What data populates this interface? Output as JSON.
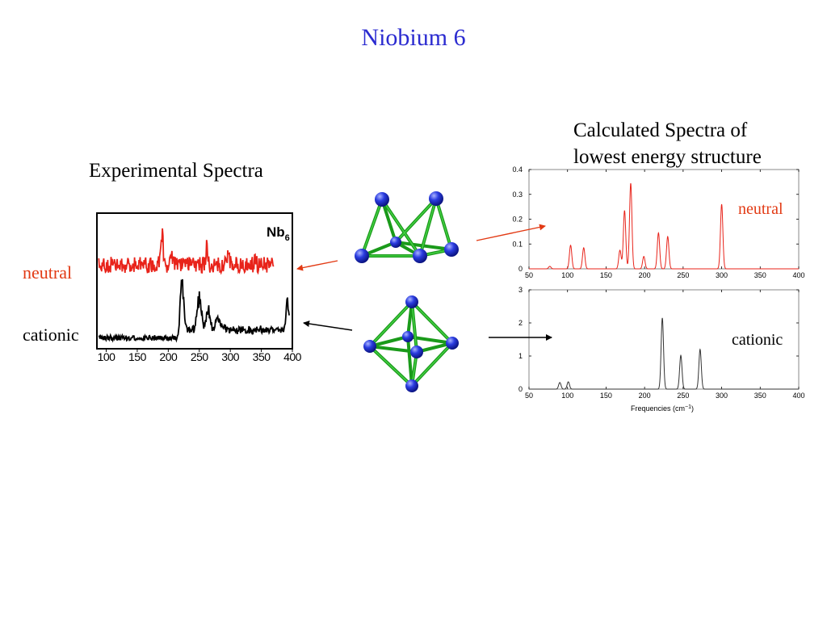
{
  "title": "Niobium 6",
  "experimental": {
    "heading": "Experimental Spectra",
    "inset_label": "Nb",
    "inset_sub": "6",
    "label_neutral": "neutral",
    "label_cationic": "cationic"
  },
  "calculated": {
    "heading_line1": "Calculated Spectra of",
    "heading_line2": "lowest energy structure",
    "label_neutral": "neutral",
    "label_cationic": "cationic"
  },
  "colors": {
    "title": "#2b2bd0",
    "neutral": "#e8231a",
    "cationic": "#000000",
    "bond": "#22b022",
    "atom": "#2233dd",
    "neutral_arrow": "#e23a14"
  },
  "chart_data": [
    {
      "type": "line",
      "name": "experimental",
      "xlim": [
        85,
        400
      ],
      "x_ticks": [
        100,
        150,
        200,
        250,
        300,
        350,
        400
      ],
      "series": [
        {
          "key": "neutral",
          "x_range": [
            88,
            370
          ],
          "baseline": 0.62,
          "noise": 0.06,
          "peaks": [
            [
              190,
              0.2,
              3
            ],
            [
              205,
              0.1,
              2
            ],
            [
              262,
              0.14,
              2
            ],
            [
              297,
              0.08,
              2
            ],
            [
              340,
              0.06,
              2
            ]
          ]
        },
        {
          "key": "cationic",
          "x_range": [
            88,
            395
          ],
          "baseline": 0.08,
          "noise": 0.02,
          "peaks": [
            [
              222,
              0.4,
              4
            ],
            [
              250,
              0.24,
              5
            ],
            [
              264,
              0.18,
              4
            ],
            [
              280,
              0.08,
              6
            ],
            [
              392,
              0.22,
              3
            ]
          ]
        }
      ]
    },
    {
      "type": "line",
      "name": "calculated-neutral",
      "xlim": [
        50,
        400
      ],
      "ylim": [
        0,
        0.4
      ],
      "x_ticks": [
        50,
        100,
        150,
        200,
        250,
        300,
        350,
        400
      ],
      "y_ticks": [
        0,
        0.1,
        0.2,
        0.3,
        0.4
      ],
      "y_tick_labels": [
        "0",
        "0.1",
        "0.2",
        "0.3",
        "0.4"
      ],
      "peaks": [
        [
          77,
          0.01
        ],
        [
          104,
          0.095
        ],
        [
          121,
          0.085
        ],
        [
          168,
          0.075
        ],
        [
          174,
          0.235
        ],
        [
          182,
          0.345
        ],
        [
          199,
          0.05
        ],
        [
          218,
          0.145
        ],
        [
          230,
          0.13
        ],
        [
          300,
          0.26
        ]
      ]
    },
    {
      "type": "line",
      "name": "calculated-cationic",
      "xlim": [
        50,
        400
      ],
      "ylim": [
        0,
        3
      ],
      "x_ticks": [
        50,
        100,
        150,
        200,
        250,
        300,
        350,
        400
      ],
      "y_ticks": [
        0,
        1,
        2,
        3
      ],
      "y_tick_labels": [
        "0",
        "1",
        "2",
        "3"
      ],
      "xlabel": "Frequencies (cm",
      "xlabel_sup": "−1",
      "xlabel_tail": ")",
      "peaks": [
        [
          90,
          0.2
        ],
        [
          101,
          0.22
        ],
        [
          223,
          2.15
        ],
        [
          247,
          1.02
        ],
        [
          272,
          1.2
        ]
      ]
    }
  ]
}
